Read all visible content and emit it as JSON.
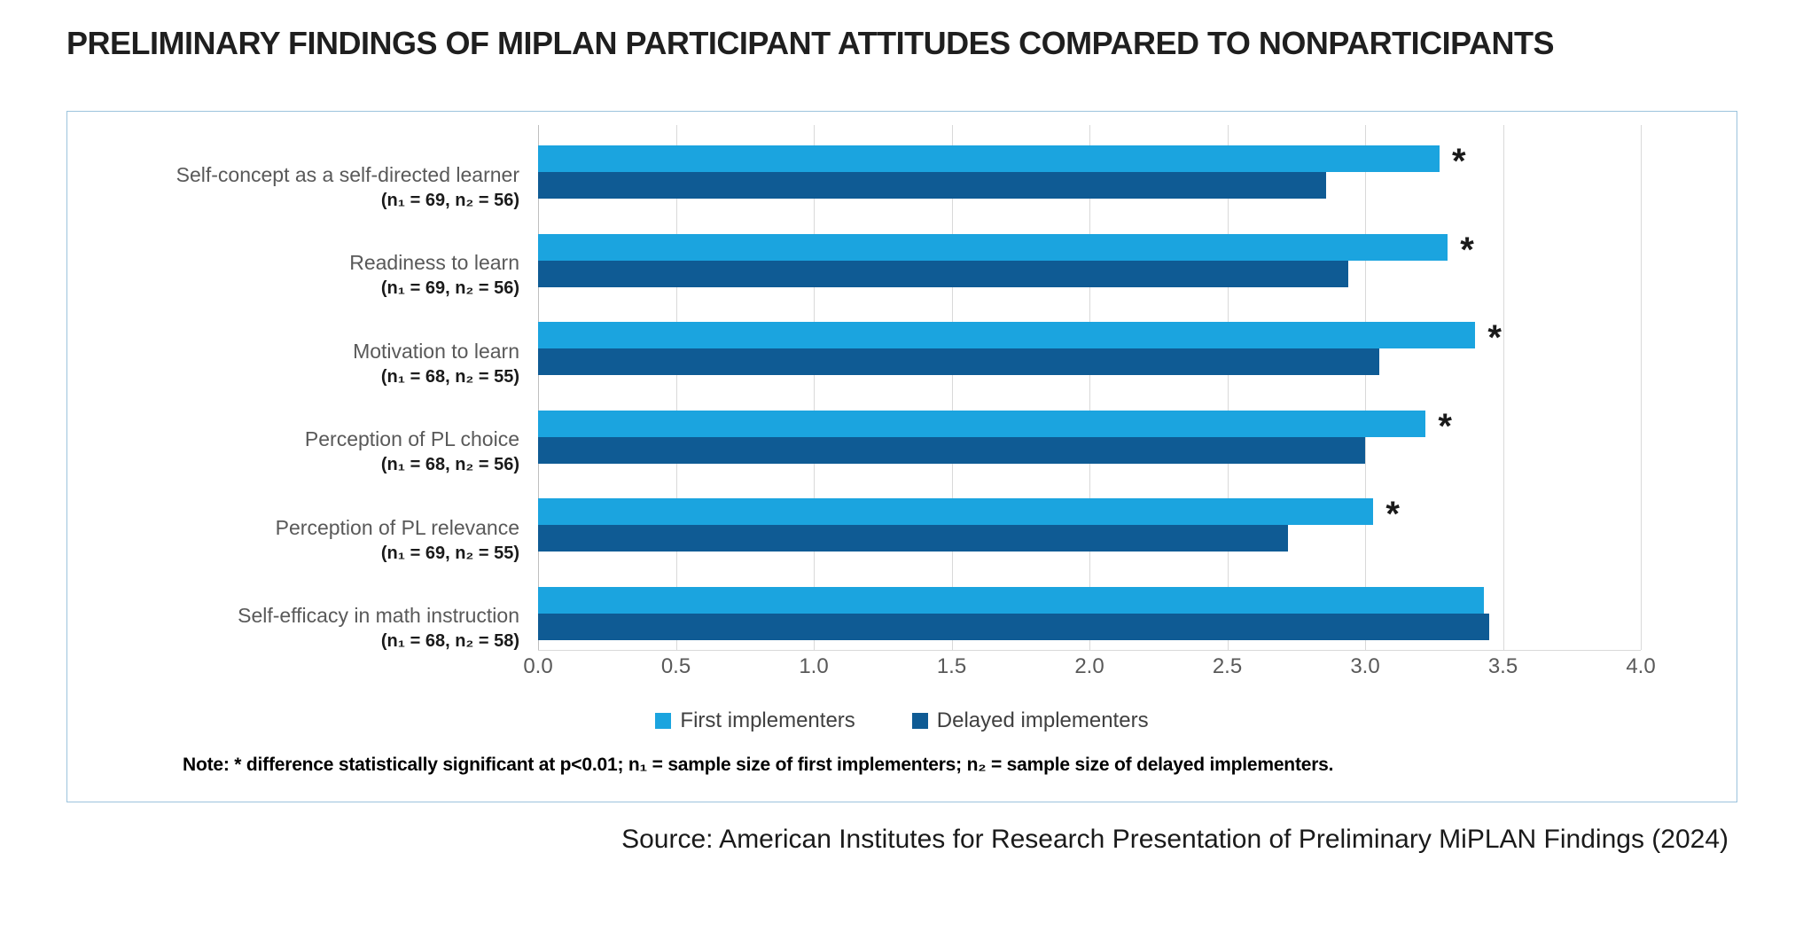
{
  "title": "PRELIMINARY FINDINGS OF MIPLAN PARTICIPANT ATTITUDES COMPARED TO NONPARTICIPANTS",
  "chart_data": {
    "type": "bar",
    "orientation": "horizontal",
    "title": "",
    "xlabel": "",
    "ylabel": "",
    "xlim": [
      0,
      4
    ],
    "x_ticks": [
      "0.0",
      "0.5",
      "1.0",
      "1.5",
      "2.0",
      "2.5",
      "3.0",
      "3.5",
      "4.0"
    ],
    "grid": true,
    "legend_position": "bottom",
    "significance_marker": "*",
    "categories": [
      {
        "label": "Self-concept as a self-directed learner",
        "sample": "(n₁ = 69, n₂ = 56)",
        "significant": true
      },
      {
        "label": "Readiness to learn",
        "sample": "(n₁ = 69, n₂ = 56)",
        "significant": true
      },
      {
        "label": "Motivation to learn",
        "sample": "(n₁ = 68, n₂ = 55)",
        "significant": true
      },
      {
        "label": "Perception of PL choice",
        "sample": "(n₁ = 68, n₂ = 56)",
        "significant": true
      },
      {
        "label": "Perception of PL relevance",
        "sample": "(n₁ = 69, n₂ = 55)",
        "significant": true
      },
      {
        "label": "Self-efficacy in math instruction",
        "sample": "(n₁ = 68, n₂ = 58)",
        "significant": false
      }
    ],
    "series": [
      {
        "name": "First implementers",
        "color": "#1ba4df",
        "values": [
          3.27,
          3.3,
          3.4,
          3.22,
          3.03,
          3.43
        ]
      },
      {
        "name": "Delayed implementers",
        "color": "#0f5b94",
        "values": [
          2.86,
          2.94,
          3.05,
          3.0,
          2.72,
          3.45
        ]
      }
    ]
  },
  "note": "Note: * difference statistically significant at p<0.01; n₁ = sample size of first implementers; n₂ = sample size of delayed implementers.",
  "source": "Source: American Institutes for Research Presentation of Preliminary MiPLAN Findings (2024)"
}
